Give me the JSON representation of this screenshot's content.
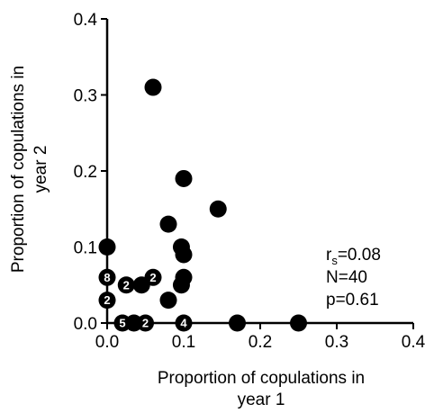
{
  "chart_data": {
    "type": "scatter",
    "xlabel": [
      "Proportion of copulations in",
      "year 1"
    ],
    "ylabel": [
      "Proportion of copulations in",
      "year 2"
    ],
    "xlim": [
      0,
      0.4
    ],
    "ylim": [
      0,
      0.4
    ],
    "xticks": [
      "0.0",
      "0.1",
      "0.2",
      "0.3",
      "0.4"
    ],
    "yticks": [
      "0.0",
      "0.1",
      "0.2",
      "0.3",
      "0.4"
    ],
    "grid": false,
    "marker_color": "#000000",
    "label_color": "#ffffff",
    "points": [
      {
        "x": 0.0,
        "y": 0.1,
        "label": ""
      },
      {
        "x": 0.0,
        "y": 0.06,
        "label": "8"
      },
      {
        "x": 0.0,
        "y": 0.03,
        "label": "2"
      },
      {
        "x": 0.025,
        "y": 0.05,
        "label": "2"
      },
      {
        "x": 0.045,
        "y": 0.05,
        "label": ""
      },
      {
        "x": 0.06,
        "y": 0.06,
        "label": "2"
      },
      {
        "x": 0.06,
        "y": 0.31,
        "label": ""
      },
      {
        "x": 0.02,
        "y": 0.0,
        "label": "5"
      },
      {
        "x": 0.035,
        "y": 0.0,
        "label": ""
      },
      {
        "x": 0.05,
        "y": 0.0,
        "label": "2"
      },
      {
        "x": 0.08,
        "y": 0.03,
        "label": ""
      },
      {
        "x": 0.08,
        "y": 0.13,
        "label": ""
      },
      {
        "x": 0.097,
        "y": 0.1,
        "label": ""
      },
      {
        "x": 0.1,
        "y": 0.09,
        "label": ""
      },
      {
        "x": 0.1,
        "y": 0.06,
        "label": ""
      },
      {
        "x": 0.097,
        "y": 0.05,
        "label": ""
      },
      {
        "x": 0.1,
        "y": 0.19,
        "label": ""
      },
      {
        "x": 0.1,
        "y": 0.0,
        "label": "4"
      },
      {
        "x": 0.145,
        "y": 0.15,
        "label": ""
      },
      {
        "x": 0.17,
        "y": 0.0,
        "label": ""
      },
      {
        "x": 0.25,
        "y": 0.0,
        "label": ""
      }
    ],
    "annotations": {
      "rs_main": "r",
      "rs_sub": "s",
      "rs_value": "=0.08",
      "n": "N=40",
      "p": "p=0.61"
    }
  }
}
